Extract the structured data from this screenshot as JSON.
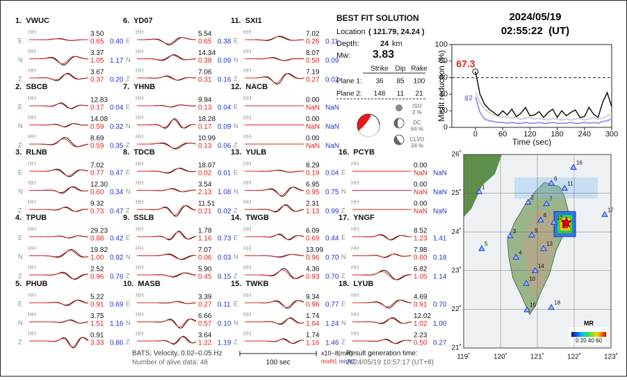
{
  "header": {
    "date": "2024/05/19",
    "time": "02:55:22  (UT)"
  },
  "stations": [
    {
      "label": "1.  VWUC",
      "components": [
        {
          "comp": "E",
          "amp": "3.50",
          "misfit1": "0.65",
          "misfit2": "0.40"
        },
        {
          "comp": "N",
          "amp": "3.37",
          "misfit1": "1.05",
          "misfit2": "1.17"
        },
        {
          "comp": "Z",
          "amp": "3.67",
          "misfit1": "0.37",
          "misfit2": "0.20"
        }
      ]
    },
    {
      "label": "2.  SBCB",
      "components": [
        {
          "comp": "E",
          "amp": "12.83",
          "misfit1": "0.17",
          "misfit2": "0.04"
        },
        {
          "comp": "N",
          "amp": "14.08",
          "misfit1": "0.59",
          "misfit2": "0.32"
        },
        {
          "comp": "Z",
          "amp": "8.69",
          "misfit1": "0.59",
          "misfit2": "0.35"
        }
      ]
    },
    {
      "label": "3.  RLNB",
      "components": [
        {
          "comp": "E",
          "amp": "7.02",
          "misfit1": "0.77",
          "misfit2": "0.47"
        },
        {
          "comp": "N",
          "amp": "12.30",
          "misfit1": "0.60",
          "misfit2": "0.34"
        },
        {
          "comp": "Z",
          "amp": "9.32",
          "misfit1": "0.73",
          "misfit2": "0.47"
        }
      ]
    },
    {
      "label": "4.  TPUB",
      "components": [
        {
          "comp": "E",
          "amp": "29.23",
          "misfit1": "0.88",
          "misfit2": "0.42"
        },
        {
          "comp": "N",
          "amp": "19.82",
          "misfit1": "1.00",
          "misfit2": "0.92"
        },
        {
          "comp": "Z",
          "amp": "2.52",
          "misfit1": "0.96",
          "misfit2": "0.76"
        }
      ]
    },
    {
      "label": "5.  PHUB",
      "components": [
        {
          "comp": "E",
          "amp": "5.22",
          "misfit1": "0.91",
          "misfit2": "0.69"
        },
        {
          "comp": "N",
          "amp": "3.75",
          "misfit1": "1.51",
          "misfit2": "1.16"
        },
        {
          "comp": "Z",
          "amp": "0.91",
          "misfit1": "3.33",
          "misfit2": "0.86"
        }
      ]
    },
    {
      "label": "6.  YD07",
      "components": [
        {
          "comp": "E",
          "amp": "5.54",
          "misfit1": "0.65",
          "misfit2": "0.38"
        },
        {
          "comp": "N",
          "amp": "14.34",
          "misfit1": "0.38",
          "misfit2": "0.09"
        },
        {
          "comp": "Z",
          "amp": "7.06",
          "misfit1": "0.31",
          "misfit2": "0.16"
        }
      ]
    },
    {
      "label": "7.  YHNB",
      "components": [
        {
          "comp": "E",
          "amp": "9.94",
          "misfit1": "0.13",
          "misfit2": "0.04"
        },
        {
          "comp": "N",
          "amp": "18.28",
          "misfit1": "0.17",
          "misfit2": "0.09"
        },
        {
          "comp": "Z",
          "amp": "10.99",
          "misfit1": "0.13",
          "misfit2": "0.06"
        }
      ]
    },
    {
      "label": "8.  TDCB",
      "components": [
        {
          "comp": "E",
          "amp": "18.07",
          "misfit1": "0.02",
          "misfit2": "0.01"
        },
        {
          "comp": "N",
          "amp": "3.54",
          "misfit1": "2.13",
          "misfit2": "1.08"
        },
        {
          "comp": "Z",
          "amp": "11.51",
          "misfit1": "0.21",
          "misfit2": "0.02"
        }
      ]
    },
    {
      "label": "9.  SSLB",
      "components": [
        {
          "comp": "E",
          "amp": "1.78",
          "misfit1": "1.16",
          "misfit2": "0.73"
        },
        {
          "comp": "N",
          "amp": "7.07",
          "misfit1": "0.06",
          "misfit2": "0.03"
        },
        {
          "comp": "Z",
          "amp": "5.90",
          "misfit1": "0.45",
          "misfit2": "0.15"
        }
      ]
    },
    {
      "label": "10.  MASB",
      "components": [
        {
          "comp": "E",
          "amp": "3.39",
          "misfit1": "0.27",
          "misfit2": "0.11"
        },
        {
          "comp": "N",
          "amp": "6.66",
          "misfit1": "0.57",
          "misfit2": "0.10"
        },
        {
          "comp": "Z",
          "amp": "3.64",
          "misfit1": "1.22",
          "misfit2": "1.19"
        }
      ]
    },
    {
      "label": "11.  SXI1",
      "components": [
        {
          "comp": "E",
          "amp": "7.02",
          "misfit1": "0.26",
          "misfit2": "0.11"
        },
        {
          "comp": "N",
          "amp": "8.07",
          "misfit1": "0.50",
          "misfit2": "0.09"
        },
        {
          "comp": "Z",
          "amp": "7.19",
          "misfit1": "0.27",
          "misfit2": "0.02"
        }
      ]
    },
    {
      "label": "12.  NACB",
      "components": [
        {
          "comp": "E",
          "amp": "0.00",
          "misfit1": "NaN",
          "misfit2": "NaN"
        },
        {
          "comp": "N",
          "amp": "0.00",
          "misfit1": "NaN",
          "misfit2": "NaN"
        },
        {
          "comp": "Z",
          "amp": "0.00",
          "misfit1": "NaN",
          "misfit2": "NaN"
        }
      ]
    },
    {
      "label": "13.  YULB",
      "components": [
        {
          "comp": "E",
          "amp": "8.29",
          "misfit1": "0.19",
          "misfit2": "0.04"
        },
        {
          "comp": "N",
          "amp": "6.95",
          "misfit1": "0.95",
          "misfit2": "0.75"
        },
        {
          "comp": "Z",
          "amp": "2.31",
          "misfit1": "1.13",
          "misfit2": "0.99"
        }
      ]
    },
    {
      "label": "14.  TWGB",
      "components": [
        {
          "comp": "E",
          "amp": "6.09",
          "misfit1": "0.69",
          "misfit2": "0.44"
        },
        {
          "comp": "N",
          "amp": "13.99",
          "misfit1": "0.96",
          "misfit2": "0.70"
        },
        {
          "comp": "Z",
          "amp": "4.36",
          "misfit1": "0.93",
          "misfit2": "0.70"
        }
      ]
    },
    {
      "label": "15.  TWKB",
      "components": [
        {
          "comp": "E",
          "amp": "9.34",
          "misfit1": "0.96",
          "misfit2": "0.77"
        },
        {
          "comp": "N",
          "amp": "1.74",
          "misfit1": "1.04",
          "misfit2": "1.24"
        },
        {
          "comp": "Z",
          "amp": "1.74",
          "misfit1": "1.16",
          "misfit2": "1.46"
        }
      ]
    },
    {
      "label": "16.  PCYB",
      "components": [
        {
          "comp": "E",
          "amp": "0.00",
          "misfit1": "NaN",
          "misfit2": "NaN"
        },
        {
          "comp": "N",
          "amp": "0.00",
          "misfit1": "NaN",
          "misfit2": "NaN"
        },
        {
          "comp": "Z",
          "amp": "0.00",
          "misfit1": "NaN",
          "misfit2": "NaN"
        }
      ]
    },
    {
      "label": "17.  YNGF",
      "components": [
        {
          "comp": "E",
          "amp": "8.52",
          "misfit1": "1.23",
          "misfit2": "1.41"
        },
        {
          "comp": "N",
          "amp": "7.98",
          "misfit1": "0.60",
          "misfit2": "0.18"
        },
        {
          "comp": "Z",
          "amp": "6.82",
          "misfit1": "1.05",
          "misfit2": "1.14"
        }
      ]
    },
    {
      "label": "18.  LYUB",
      "components": [
        {
          "comp": "E",
          "amp": "4.69",
          "misfit1": "0.91",
          "misfit2": "0.70"
        },
        {
          "comp": "N",
          "amp": "12.02",
          "misfit1": "1.02",
          "misfit2": "1.00"
        },
        {
          "comp": "Z",
          "amp": "2.23",
          "misfit1": "0.50",
          "misfit2": "0.27"
        }
      ]
    }
  ],
  "channel": "HH",
  "solution": {
    "title": "BEST FIT SOLUTION",
    "location_label": "Location",
    "location": "( 121.79, 24.24 )",
    "depth_label": "Depth:",
    "depth": "24",
    "depth_unit": "km",
    "mw_label": "Mw:",
    "mw": "3.83",
    "columns": [
      "Strike",
      "Dip",
      "Rake"
    ],
    "planes": [
      {
        "label": "Plane 1:",
        "values": [
          "36",
          "85",
          "100"
        ]
      },
      {
        "label": "Plane 2:",
        "values": [
          "148",
          "11",
          "21"
        ]
      }
    ],
    "components": [
      {
        "name": "ISO",
        "pct": "2 %"
      },
      {
        "name": "DC",
        "pct": "64 %"
      },
      {
        "name": "CLVD",
        "pct": "34 %"
      }
    ]
  },
  "footer": {
    "filter": "BATS, Velocity, 0.02–0.05 Hz",
    "alive": "Number of alive data: 48",
    "scale": "100 sec",
    "unit": "x10−8(m/s)",
    "misfit1": "misfit1",
    "misfit2": "misfit2",
    "result_label": "Result generation time:",
    "result_time": "2024/05/19 10:57:17 (UT+8)"
  },
  "chart_data": {
    "type": "line",
    "xlabel": "Time (sec)",
    "ylabel": "Misfit reduction (%)",
    "xlim": [
      -52,
      300
    ],
    "ylim": [
      0,
      100
    ],
    "xticks": [
      0,
      60,
      120,
      180,
      240,
      300
    ],
    "yticks": [
      0,
      20,
      40,
      60,
      80,
      100
    ],
    "threshold": 60,
    "x": [
      0,
      10,
      20,
      30,
      40,
      50,
      60,
      70,
      80,
      90,
      100,
      110,
      120,
      130,
      140,
      150,
      160,
      170,
      180,
      190,
      200,
      210,
      220,
      230,
      240,
      250,
      260,
      270,
      280,
      290,
      300
    ],
    "series": [
      {
        "name": "grey",
        "color": "#cfcfcf",
        "values": [
          42,
          30,
          22,
          18,
          15,
          14,
          12,
          13,
          11,
          12,
          10,
          11,
          12,
          10,
          11,
          10,
          9,
          11,
          10,
          9,
          10,
          9,
          10,
          11,
          9,
          10,
          12,
          10,
          11,
          14,
          16
        ]
      },
      {
        "name": "misfit2",
        "color": "#9a9af0",
        "values": [
          37,
          18,
          10,
          8,
          7,
          6,
          6,
          5,
          6,
          5,
          5,
          6,
          5,
          5,
          6,
          5,
          5,
          6,
          5,
          5,
          5,
          6,
          5,
          5,
          6,
          5,
          6,
          5,
          7,
          8,
          10
        ]
      },
      {
        "name": "misfit1",
        "color": "#111111",
        "values": [
          67.3,
          40,
          28,
          22,
          18,
          14,
          20,
          15,
          22,
          13,
          17,
          24,
          14,
          15,
          19,
          12,
          18,
          22,
          12,
          20,
          14,
          18,
          21,
          12,
          13,
          24,
          16,
          12,
          30,
          42,
          25
        ]
      }
    ]
  },
  "map": {
    "xlim": [
      119,
      123
    ],
    "ylim": [
      21,
      26
    ],
    "xticks": [
      {
        "value": 119,
        "label": "119˚"
      },
      {
        "value": 120,
        "label": "120˚"
      },
      {
        "value": 121,
        "label": "121˚"
      },
      {
        "value": 122,
        "label": "122˚"
      },
      {
        "value": 123,
        "label": "123˚"
      }
    ],
    "yticks": [
      {
        "value": 21,
        "label": "21˚"
      },
      {
        "value": 22,
        "label": "22˚"
      },
      {
        "value": 23,
        "label": "23˚"
      },
      {
        "value": 24,
        "label": "24˚"
      },
      {
        "value": 25,
        "label": "25˚"
      },
      {
        "value": 26,
        "label": "26˚"
      }
    ],
    "epicenter": [
      121.79,
      24.24
    ],
    "stations": [
      {
        "label": "1",
        "lon": 119.42,
        "lat": 25.04
      },
      {
        "label": "2",
        "lon": 120.75,
        "lat": 24.77
      },
      {
        "label": "3",
        "lon": 120.26,
        "lat": 23.9
      },
      {
        "label": "4",
        "lon": 120.42,
        "lat": 23.35
      },
      {
        "label": "5",
        "lon": 119.49,
        "lat": 23.57
      },
      {
        "label": "6",
        "lon": 121.38,
        "lat": 25.26
      },
      {
        "label": "7",
        "lon": 121.25,
        "lat": 24.73
      },
      {
        "label": "8",
        "lon": 121.09,
        "lat": 24.31
      },
      {
        "label": "9",
        "lon": 120.85,
        "lat": 23.92
      },
      {
        "label": "10",
        "lon": 120.7,
        "lat": 22.67
      },
      {
        "label": "11",
        "lon": 121.74,
        "lat": 25.13
      },
      {
        "label": "12",
        "lon": 121.45,
        "lat": 24.25
      },
      {
        "label": "13",
        "lon": 121.17,
        "lat": 23.57
      },
      {
        "label": "14",
        "lon": 120.94,
        "lat": 23.0
      },
      {
        "label": "15",
        "lon": 120.72,
        "lat": 21.99
      },
      {
        "label": "16",
        "lon": 121.98,
        "lat": 25.67
      },
      {
        "label": "17",
        "lon": 122.83,
        "lat": 24.45
      },
      {
        "label": "18",
        "lon": 121.38,
        "lat": 22.05
      }
    ],
    "colorbar_title": "MR",
    "colorbar_labels": "0 20 40 60"
  }
}
